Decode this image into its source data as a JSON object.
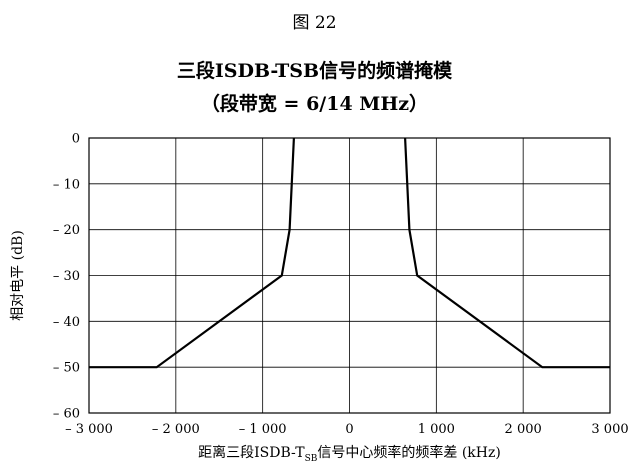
{
  "figure_label": "图 22",
  "chart_data": {
    "type": "line",
    "title": "三段ISDB-TSB信号的频谱掩模",
    "subtitle": "（段带宽 = 6/14 MHz）",
    "xlabel": {
      "prefix": "距离三段ISDB-T",
      "sub": "SB",
      "suffix": "信号中心频率的频率差 (kHz)"
    },
    "ylabel": "相对电平 (dB)",
    "xlim": [
      -3000,
      3000
    ],
    "ylim": [
      -60,
      0
    ],
    "x_ticks": [
      -3000,
      -2000,
      -1000,
      0,
      1000,
      2000,
      3000
    ],
    "x_tick_labels": [
      "– 3 000",
      "– 2 000",
      "– 1 000",
      "0",
      "1 000",
      "2 000",
      "3 000"
    ],
    "y_ticks": [
      0,
      -10,
      -20,
      -30,
      -40,
      -50,
      -60
    ],
    "y_tick_labels": [
      "0",
      "– 10",
      "– 20",
      "– 30",
      "– 40",
      "– 50",
      "– 60"
    ],
    "grid": true,
    "series": [
      {
        "x": [
          -3000,
          -2220,
          -780,
          -690,
          -640,
          -640
        ],
        "y": [
          -50,
          -50,
          -30,
          -20,
          0,
          0
        ]
      },
      {
        "x": [
          640,
          690,
          780,
          2220,
          3000
        ],
        "y": [
          0,
          -20,
          -30,
          -50,
          -50
        ]
      }
    ],
    "line_color": "#000000"
  }
}
